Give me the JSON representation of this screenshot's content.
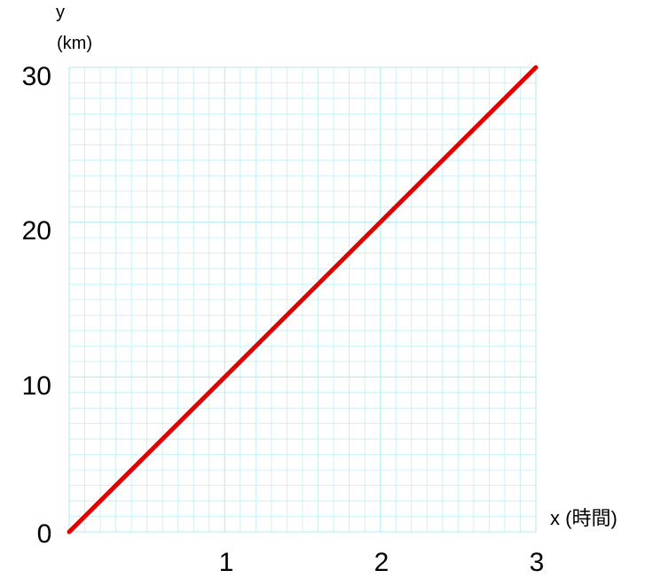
{
  "chart_data": {
    "type": "line",
    "xlabel": "x (時間)",
    "ylabel_var": "y",
    "ylabel_unit": "(km)",
    "x_ticks": [
      "1",
      "2",
      "3"
    ],
    "y_ticks": [
      "0",
      "10",
      "20",
      "30"
    ],
    "xlim": [
      0,
      3
    ],
    "ylim": [
      0,
      30
    ],
    "grid": true,
    "minor_divisions_x": 10,
    "minor_divisions_y": 10,
    "series": [
      {
        "x": [
          0,
          3
        ],
        "y": [
          0,
          30
        ],
        "color": "#e00000"
      }
    ],
    "colors": {
      "grid": "#bfeff5",
      "line": "#e00000"
    }
  }
}
